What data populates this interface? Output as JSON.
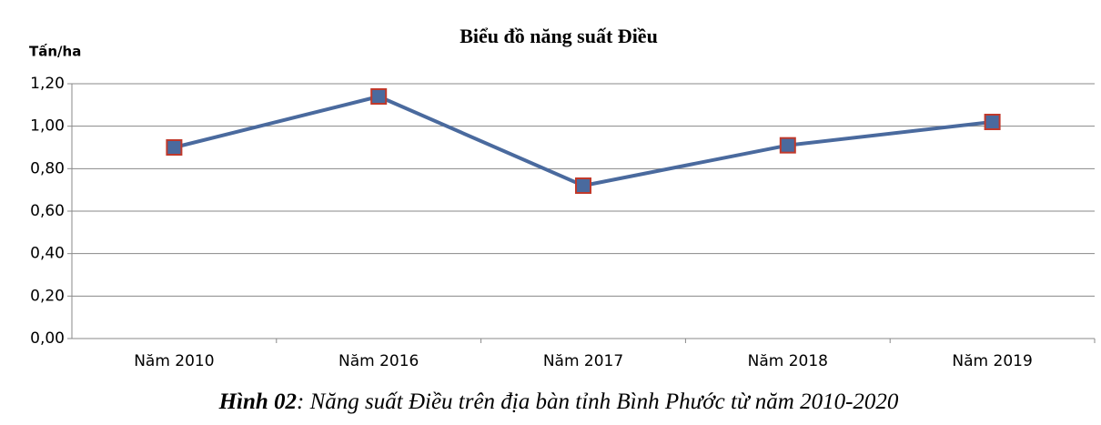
{
  "chart_data": {
    "type": "line",
    "title": "Biểu đồ năng suất Điều",
    "y_label": "Tấn/ha",
    "caption_label": "Hình 02",
    "caption_text": ": Năng suất Điều trên địa bàn tỉnh Bình Phước từ năm 2010-2020",
    "categories": [
      "Năm 2010",
      "Năm 2016",
      "Năm 2017",
      "Năm 2018",
      "Năm 2019"
    ],
    "series": [
      {
        "name": "Năng suất",
        "color": "#4a6a9e",
        "marker_edge": "#c0392b",
        "values": [
          0.9,
          1.14,
          0.72,
          0.91,
          1.02
        ]
      }
    ],
    "ylim": [
      0,
      1.2
    ],
    "yticks": [
      {
        "value": 0,
        "label": "0,00"
      },
      {
        "value": 0.2,
        "label": "0,20"
      },
      {
        "value": 0.4,
        "label": "0,40"
      },
      {
        "value": 0.6,
        "label": "0,60"
      },
      {
        "value": 0.8,
        "label": "0,80"
      },
      {
        "value": 1.0,
        "label": "1,00"
      },
      {
        "value": 1.2,
        "label": "1,20"
      }
    ],
    "grid": true
  }
}
